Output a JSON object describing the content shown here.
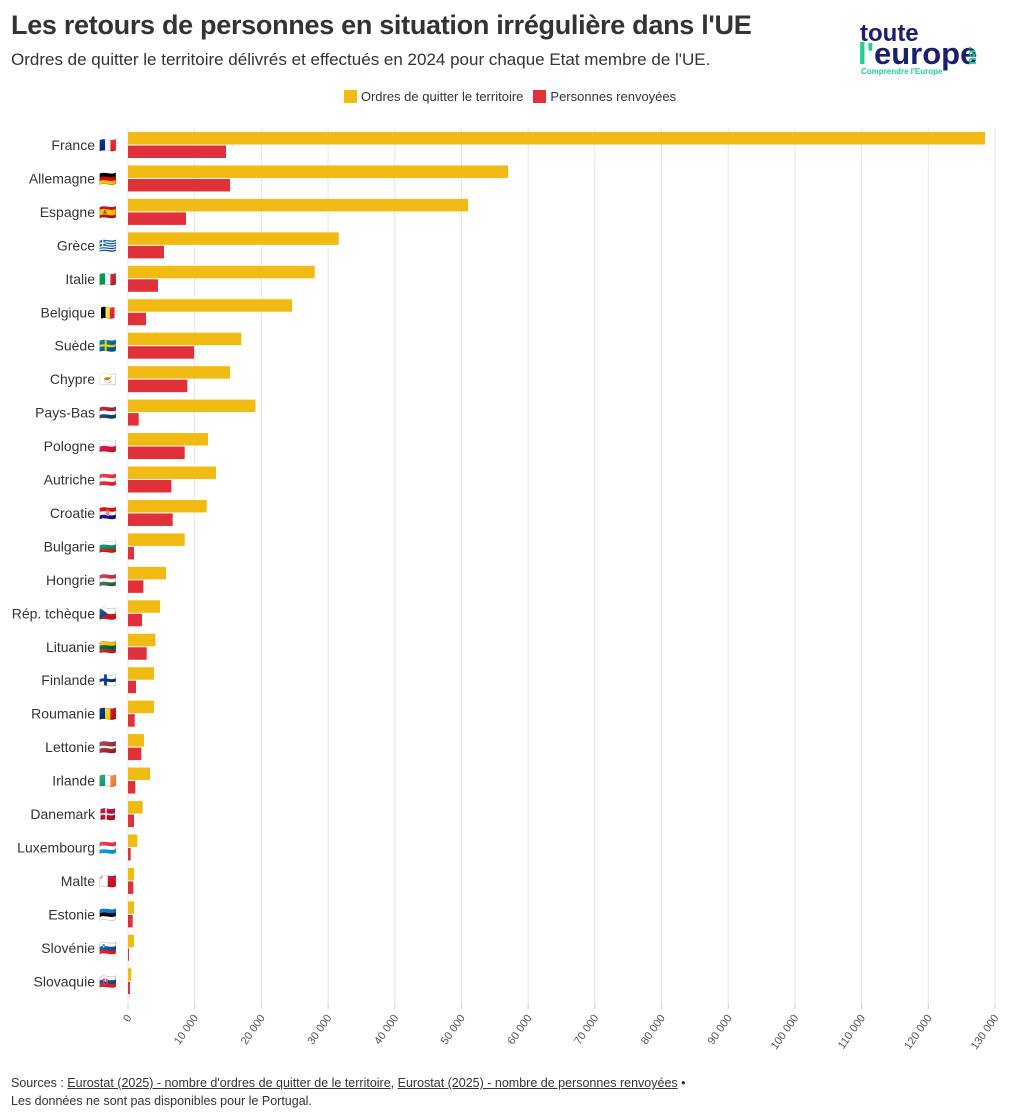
{
  "title": "Les retours de personnes en situation irrégulière dans l'UE",
  "subtitle": "Ordres de quitter le territoire délivrés et effectués en 2024 pour chaque Etat membre de l'UE.",
  "logo": {
    "line1": "toute",
    "line2_apos": "l'",
    "line2": "europe",
    "suffix": ".eu",
    "tagline": "Comprendre l'Europe"
  },
  "colors": {
    "orders": "#f2bb13",
    "returns": "#e0303a",
    "grid": "#e6e6e6",
    "text": "#333333"
  },
  "footer": {
    "prefix": "Sources : ",
    "link1": "Eurostat (2025) - nombre d'ordres de quitter de le territoire",
    "sep": ", ",
    "link2": "Eurostat (2025) - nombre de personnes renvoyées",
    "bullet": " •",
    "note": "Les données ne sont pas disponibles pour le Portugal."
  },
  "chart_data": {
    "type": "bar",
    "orientation": "horizontal",
    "grid": true,
    "legend_position": "top-center",
    "xlim": [
      0,
      130000
    ],
    "x_ticks": [
      "0",
      "10 000",
      "20 000",
      "30 000",
      "40 000",
      "50 000",
      "60 000",
      "70 000",
      "80 000",
      "90 000",
      "100 000",
      "110 000",
      "120 000",
      "130 000"
    ],
    "categories": [
      "France",
      "Allemagne",
      "Espagne",
      "Grèce",
      "Italie",
      "Belgique",
      "Suède",
      "Chypre",
      "Pays-Bas",
      "Pologne",
      "Autriche",
      "Croatie",
      "Bulgarie",
      "Hongrie",
      "Rép. tchèque",
      "Lituanie",
      "Finlande",
      "Roumanie",
      "Lettonie",
      "Irlande",
      "Danemark",
      "Luxembourg",
      "Malte",
      "Estonie",
      "Slovénie",
      "Slovaquie"
    ],
    "flags": [
      "🇫🇷",
      "🇩🇪",
      "🇪🇸",
      "🇬🇷",
      "🇮🇹",
      "🇧🇪",
      "🇸🇪",
      "🇨🇾",
      "🇳🇱",
      "🇵🇱",
      "🇦🇹",
      "🇭🇷",
      "🇧🇬",
      "🇭🇺",
      "🇨🇿",
      "🇱🇹",
      "🇫🇮",
      "🇷🇴",
      "🇱🇻",
      "🇮🇪",
      "🇩🇰",
      "🇱🇺",
      "🇲🇹",
      "🇪🇪",
      "🇸🇮",
      "🇸🇰"
    ],
    "series": [
      {
        "name": "Ordres de quitter le territoire",
        "values": [
          128500,
          57000,
          51000,
          31600,
          28000,
          24600,
          17000,
          15300,
          19100,
          12000,
          13200,
          11800,
          8500,
          5700,
          4800,
          4100,
          3900,
          3900,
          2400,
          3300,
          2200,
          1400,
          900,
          900,
          900,
          500
        ]
      },
      {
        "name": "Personnes renvoyées",
        "values": [
          14700,
          15300,
          8700,
          5400,
          4500,
          2700,
          9900,
          8900,
          1600,
          8500,
          6500,
          6700,
          900,
          2300,
          2100,
          2800,
          1200,
          1000,
          2000,
          1100,
          900,
          400,
          800,
          700,
          100,
          300
        ]
      }
    ]
  }
}
